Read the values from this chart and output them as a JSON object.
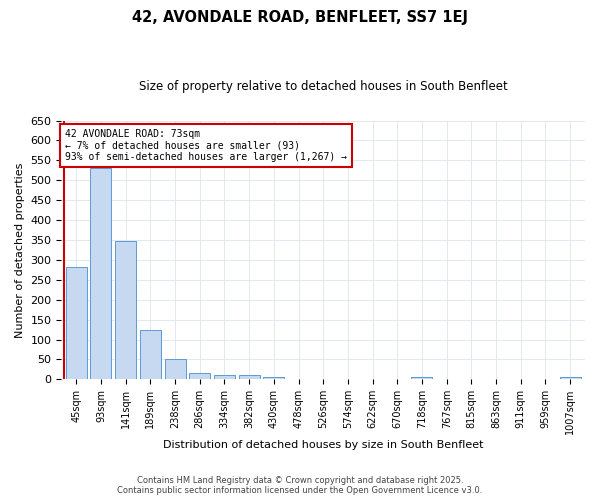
{
  "title": "42, AVONDALE ROAD, BENFLEET, SS7 1EJ",
  "subtitle": "Size of property relative to detached houses in South Benfleet",
  "xlabel": "Distribution of detached houses by size in South Benfleet",
  "ylabel": "Number of detached properties",
  "categories": [
    "45sqm",
    "93sqm",
    "141sqm",
    "189sqm",
    "238sqm",
    "286sqm",
    "334sqm",
    "382sqm",
    "430sqm",
    "478sqm",
    "526sqm",
    "574sqm",
    "622sqm",
    "670sqm",
    "718sqm",
    "767sqm",
    "815sqm",
    "863sqm",
    "911sqm",
    "959sqm",
    "1007sqm"
  ],
  "values": [
    283,
    530,
    348,
    125,
    50,
    17,
    11,
    10,
    6,
    0,
    0,
    0,
    0,
    0,
    6,
    0,
    0,
    0,
    0,
    0,
    6
  ],
  "bar_color": "#c6d9f0",
  "bar_edge_color": "#5b9bd5",
  "ylim": [
    0,
    650
  ],
  "yticks": [
    0,
    50,
    100,
    150,
    200,
    250,
    300,
    350,
    400,
    450,
    500,
    550,
    600,
    650
  ],
  "marker_color": "#cc0000",
  "annotation_title": "42 AVONDALE ROAD: 73sqm",
  "annotation_line1": "← 7% of detached houses are smaller (93)",
  "annotation_line2": "93% of semi-detached houses are larger (1,267) →",
  "footer_line1": "Contains HM Land Registry data © Crown copyright and database right 2025.",
  "footer_line2": "Contains public sector information licensed under the Open Government Licence v3.0.",
  "bg_color": "#ffffff",
  "plot_bg_color": "#ffffff",
  "grid_color": "#dde4f0"
}
